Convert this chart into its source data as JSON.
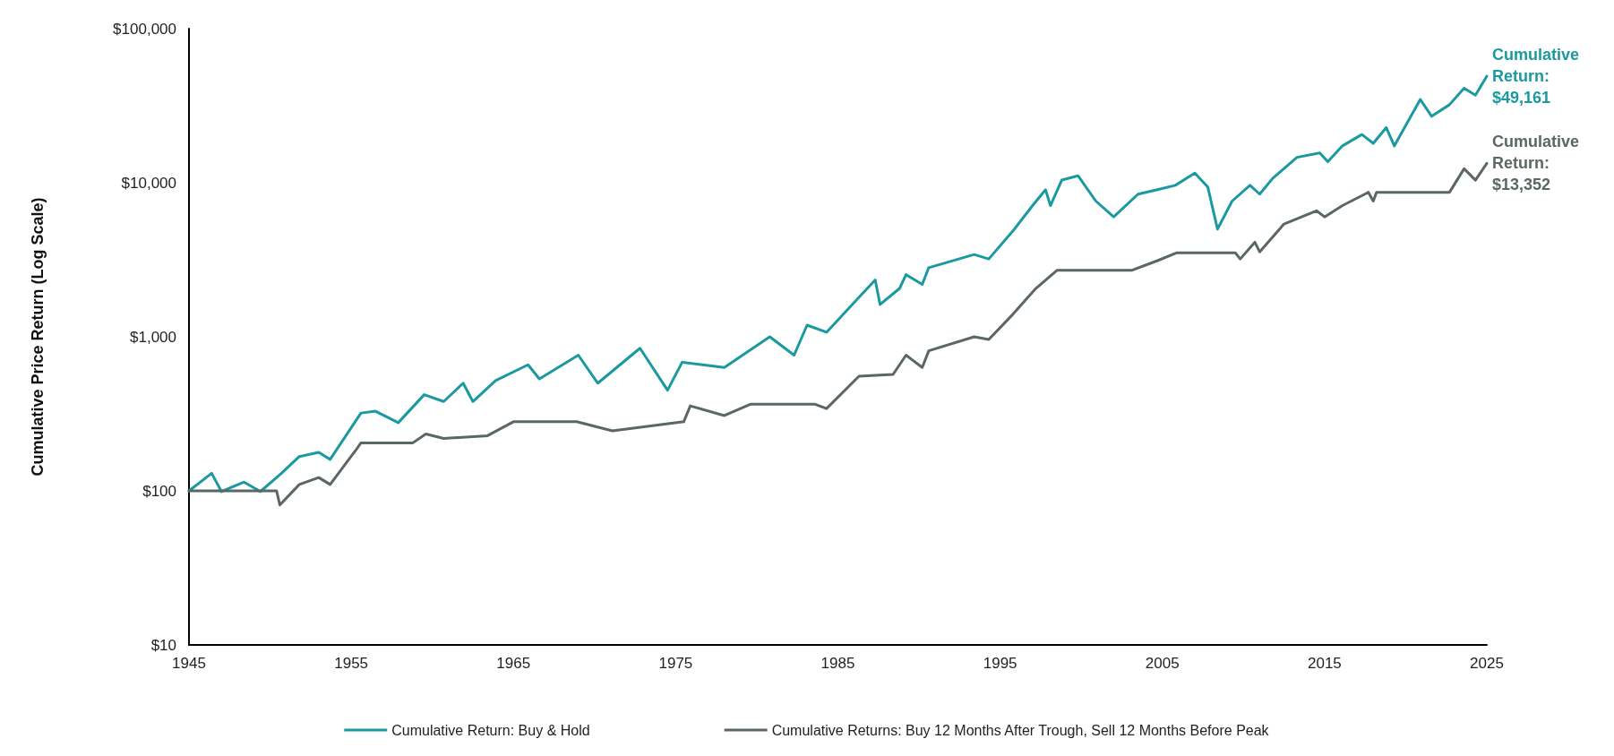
{
  "chart_data": {
    "type": "line",
    "ylabel": "Cumulative Price Return (Log Scale)",
    "log": "y",
    "grid": false,
    "legend": "bottom",
    "marker": "none",
    "line_style": "solid",
    "xlim": [
      1945,
      2025
    ],
    "xticks": [
      1945,
      1955,
      1965,
      1975,
      1985,
      1995,
      2005,
      2015,
      2025
    ],
    "ylim": [
      10,
      100000
    ],
    "yticks": [
      {
        "value": 10,
        "label": "$10"
      },
      {
        "value": 100,
        "label": "$100"
      },
      {
        "value": 1000,
        "label": "$1,000"
      },
      {
        "value": 10000,
        "label": "$10,000"
      },
      {
        "value": 100000,
        "label": "$100,000"
      }
    ],
    "series": [
      {
        "name": "Cumulative Return: Buy & Hold",
        "color": "#1a9aa0",
        "x": [
          1945,
          1946.4,
          1947,
          1948.4,
          1949.4,
          1950.7,
          1951.8,
          1953,
          1953.7,
          1955.6,
          1956.5,
          1957.9,
          1959.5,
          1960.7,
          1961.9,
          1962.5,
          1963.9,
          1965.9,
          1966.6,
          1969,
          1970.2,
          1972.8,
          1974.5,
          1975.4,
          1978,
          1980.8,
          1982.3,
          1983.1,
          1984.3,
          1986,
          1987.3,
          1987.6,
          1988.8,
          1989.2,
          1990.2,
          1990.6,
          1993.4,
          1994.3,
          1995.8,
          1997,
          1997.8,
          1998.1,
          1998.8,
          1999.8,
          2000.9,
          2002,
          2003.5,
          2004.7,
          2005.8,
          2007,
          2007.8,
          2008.4,
          2009.3,
          2010.4,
          2011,
          2011.8,
          2013.3,
          2014.7,
          2015.2,
          2016.1,
          2017.3,
          2018,
          2018.8,
          2019.3,
          2020.9,
          2021.6,
          2022.7,
          2023.6,
          2024.3,
          2025
        ],
        "values": [
          100,
          130,
          99,
          114,
          99,
          130,
          167,
          178,
          160,
          320,
          329,
          277,
          421,
          380,
          500,
          380,
          520,
          658,
          533,
          760,
          500,
          843,
          450,
          684,
          632,
          1000,
          760,
          1190,
          1070,
          1667,
          2340,
          1620,
          2060,
          2530,
          2190,
          2810,
          3420,
          3200,
          4880,
          7110,
          9010,
          7100,
          10400,
          11100,
          7600,
          6000,
          8430,
          9010,
          9620,
          11550,
          9380,
          5000,
          7600,
          9620,
          8430,
          10670,
          14620,
          15600,
          13680,
          17350,
          20560,
          18030,
          22800,
          17350,
          34700,
          27000,
          32100,
          41100,
          37000,
          49161
        ]
      },
      {
        "name": "Cumulative Returns: Buy 12 Months After Trough, Sell 12 Months Before Peak",
        "color": "#5b6764",
        "x": [
          1945,
          1950.4,
          1950.6,
          1951.8,
          1953,
          1953.7,
          1955.3,
          1955.6,
          1958.8,
          1959.6,
          1960.7,
          1963.4,
          1965,
          1968.9,
          1971.1,
          1975.5,
          1975.9,
          1978,
          1979.6,
          1983.6,
          1984.3,
          1986.3,
          1988.4,
          1989.2,
          1990.2,
          1990.6,
          1993.4,
          1994.3,
          1995.8,
          1997.2,
          1998.5,
          2003.1,
          2004.7,
          2005.9,
          2009.5,
          2009.8,
          2010.7,
          2011,
          2012.5,
          2014.5,
          2015,
          2016.1,
          2017.7,
          2018,
          2018.2,
          2022.7,
          2023.6,
          2024.3,
          2025
        ],
        "values": [
          100,
          100,
          81,
          110,
          122,
          110,
          185,
          205,
          205,
          234,
          219,
          228,
          281,
          281,
          245,
          281,
          356,
          308,
          365,
          365,
          342,
          555,
          570,
          760,
          632,
          811,
          1000,
          960,
          1405,
          2060,
          2700,
          2700,
          3120,
          3510,
          3510,
          3200,
          4110,
          3560,
          5400,
          6580,
          6000,
          7110,
          8670,
          7600,
          8670,
          8670,
          12330,
          10400,
          13352
        ]
      }
    ],
    "annotations": [
      {
        "text": "Cumulative Return: $49,161",
        "x": 2025,
        "y": 49161
      },
      {
        "text": "Cumulative Return: $13,352",
        "x": 2025,
        "y": 13352
      }
    ]
  }
}
